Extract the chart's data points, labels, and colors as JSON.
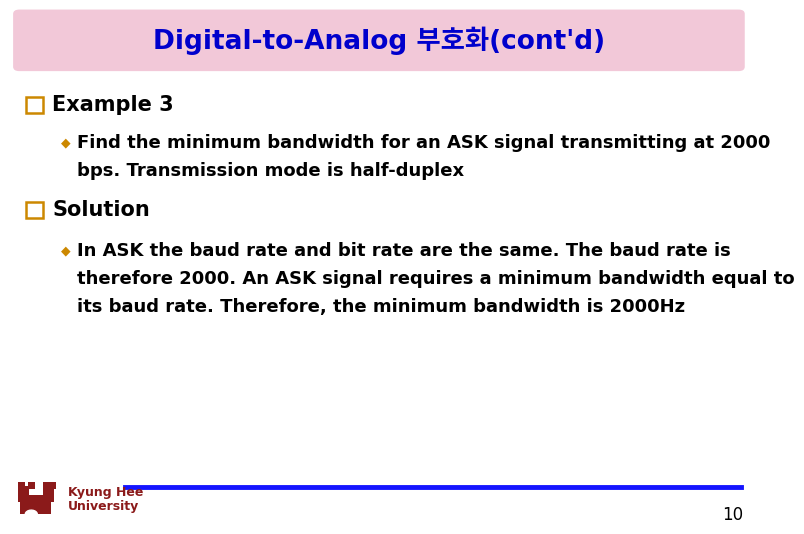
{
  "title": "Digital-to-Analog 부호화(cont'd)",
  "title_bg_color": "#F2C8D8",
  "title_text_color": "#0000CC",
  "title_fontsize": 19,
  "example_label": "Example 3",
  "bullet_color": "#CC8800",
  "example_bullet_line1": "Find the minimum bandwidth for an ASK signal transmitting at 2000",
  "example_bullet_line2": "bps. Transmission mode is half-duplex",
  "solution_label": "Solution",
  "solution_bullet_line1": "In ASK the baud rate and bit rate are the same. The baud rate is",
  "solution_bullet_line2": "therefore 2000. An ASK signal requires a minimum bandwidth equal to",
  "solution_bullet_line3": "its baud rate. Therefore, the minimum bandwidth is 2000Hz",
  "footer_text_line1": "Kyung Hee",
  "footer_text_line2": "University",
  "footer_line_color": "#1414FF",
  "footer_text_color": "#8B1A1A",
  "page_number": "10",
  "bg_color": "#FFFFFF",
  "body_text_color": "#000000",
  "sq_edge_color": "#CC8800",
  "body_fontsize": 13,
  "label_fontsize": 15
}
